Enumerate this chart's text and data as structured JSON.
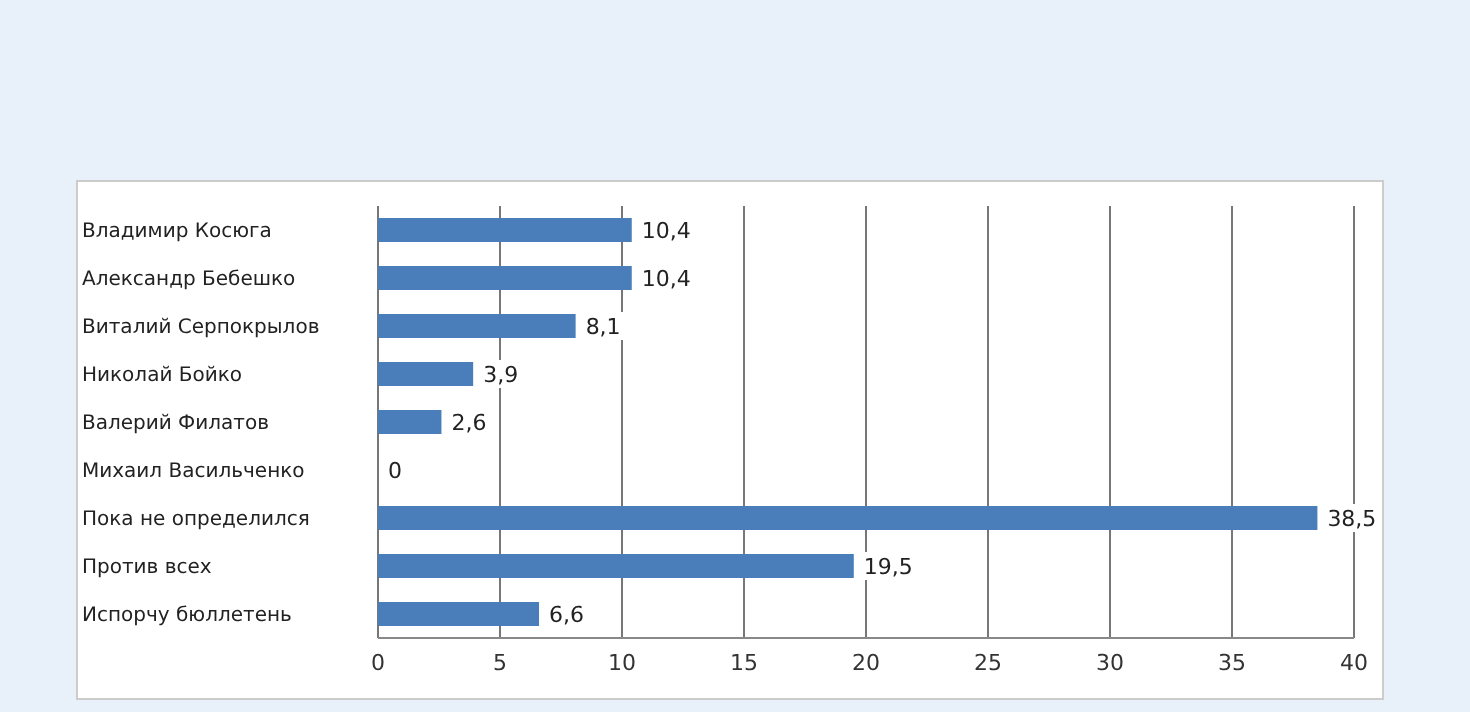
{
  "chart_data": {
    "type": "bar",
    "orientation": "horizontal",
    "categories": [
      "Владимир Косюга",
      "Александр Бебешко",
      "Виталий Серпокрылов",
      "Николай Бойко",
      "Валерий Филатов",
      "Михаил Васильченко",
      "Пока не определился",
      "Против всех",
      "Испорчу  бюллетень"
    ],
    "values": [
      10.4,
      10.4,
      8.1,
      3.9,
      2.6,
      0,
      38.5,
      19.5,
      6.6
    ],
    "value_labels": [
      "10,4",
      "10,4",
      "8,1",
      "3,9",
      "2,6",
      "0",
      "38,5",
      "19,5",
      "6,6"
    ],
    "color": "#4a7ebb",
    "xlim": [
      0,
      40
    ],
    "xticks": [
      0,
      5,
      10,
      15,
      20,
      25,
      30,
      35,
      40
    ],
    "grid": "x"
  }
}
